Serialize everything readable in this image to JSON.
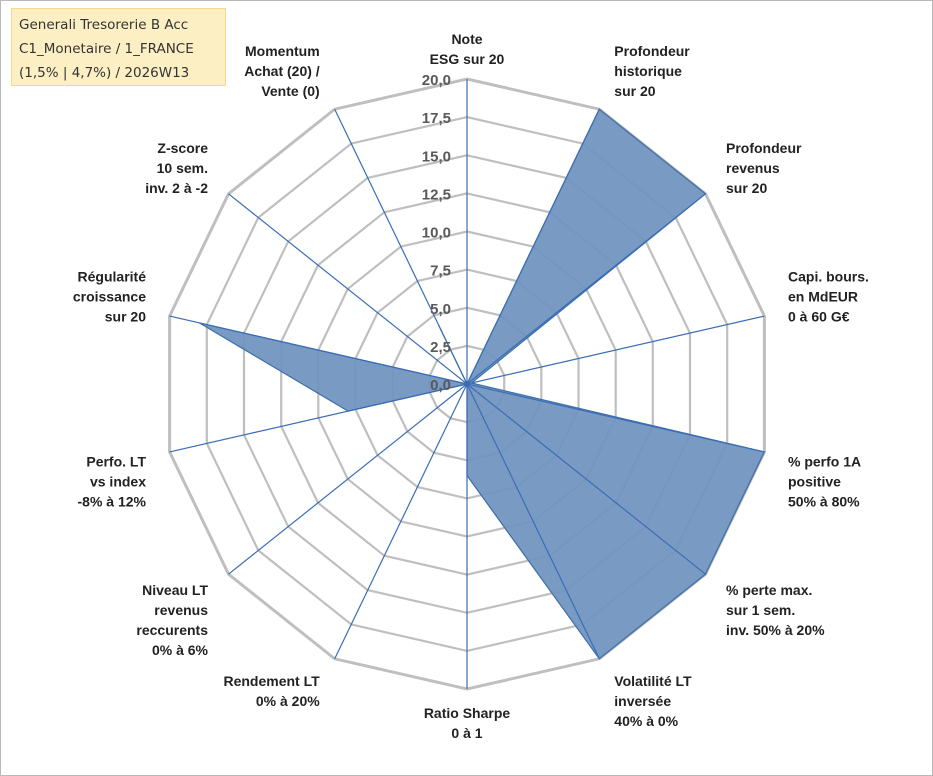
{
  "title_box": {
    "line1": "Generali Tresorerie B Acc",
    "line2": "C1_Monetaire / 1_FRANCE",
    "line3": "(1,5% | 4,7%) / 2026W13"
  },
  "chart_data": {
    "type": "radar",
    "range": [
      0,
      20
    ],
    "tick_values": [
      0,
      2.5,
      5,
      7.5,
      10,
      12.5,
      15,
      17.5,
      20
    ],
    "tick_labels": [
      "0,0",
      "2,5",
      "5,0",
      "7,5",
      "10,0",
      "12,5",
      "15,0",
      "17,5",
      "20,0"
    ],
    "axes": [
      {
        "lines": [
          "Note",
          "ESG sur 20"
        ],
        "value": 0
      },
      {
        "lines": [
          "Profondeur",
          "historique",
          "sur 20"
        ],
        "value": 20
      },
      {
        "lines": [
          "Profondeur",
          "revenus",
          "sur 20"
        ],
        "value": 20
      },
      {
        "lines": [
          "Capi. bours.",
          "en MdEUR",
          "0 à 60 G€"
        ],
        "value": 0.3
      },
      {
        "lines": [
          "% perfo 1A",
          "positive",
          "50% à 80%"
        ],
        "value": 20
      },
      {
        "lines": [
          "% perte max.",
          "sur 1 sem.",
          "inv. 50% à 20%"
        ],
        "value": 20
      },
      {
        "lines": [
          "Volatilité LT",
          "inversée",
          "40% à 0%"
        ],
        "value": 20
      },
      {
        "lines": [
          "Ratio Sharpe",
          "0 à 1"
        ],
        "value": 6
      },
      {
        "lines": [
          "Rendement LT",
          "0% à 20%"
        ],
        "value": 0
      },
      {
        "lines": [
          "Niveau LT",
          "revenus",
          "reccurents",
          "0% à 6%"
        ],
        "value": 0
      },
      {
        "lines": [
          "Perfo. LT",
          "vs index",
          "-8% à 12%"
        ],
        "value": 8
      },
      {
        "lines": [
          "Régularité",
          "croissance",
          "sur 20"
        ],
        "value": 18
      },
      {
        "lines": [
          "Z-score",
          "10 sem.",
          "inv. 2 à -2"
        ],
        "value": 0
      },
      {
        "lines": [
          "Momentum",
          "Achat (20) /",
          "Vente (0)"
        ],
        "value": 4.3
      }
    ],
    "colors": {
      "fill": "#6f93be",
      "stroke": "#3f6fa8",
      "axis": "#3a6db5",
      "grid": "#bfbfbf",
      "tick": "#595959"
    }
  }
}
